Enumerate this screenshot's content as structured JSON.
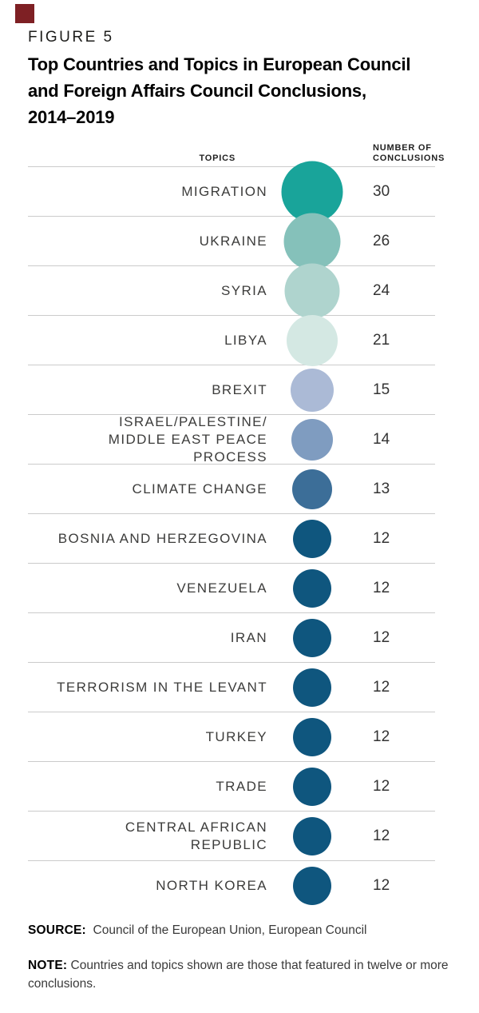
{
  "figure": {
    "kicker": "FIGURE 5",
    "title_lines": [
      "Top Countries and Topics in European Council",
      "and Foreign Affairs Council Conclusions,",
      "2014–2019"
    ],
    "marker_color": "#7E2024"
  },
  "chart_data": {
    "type": "table",
    "variant": "proportional-bubble-table",
    "title": "Top Countries and Topics in European Council and Foreign Affairs Council Conclusions, 2014–2019",
    "topics_header": "TOPICS",
    "count_header_lines": [
      "NUMBER OF",
      "CONCLUSIONS"
    ],
    "encoding": "circle size encodes number of conclusions",
    "divider_color": "#CBCBCB",
    "rows": [
      {
        "topic": "MIGRATION",
        "value": 30,
        "color": "#19A49A"
      },
      {
        "topic": "UKRAINE",
        "value": 26,
        "color": "#85C1BA"
      },
      {
        "topic": "SYRIA",
        "value": 24,
        "color": "#AFD4CE"
      },
      {
        "topic": "LIBYA",
        "value": 21,
        "color": "#D4E8E3"
      },
      {
        "topic": "BREXIT",
        "value": 15,
        "color": "#ABBAD6"
      },
      {
        "topic": "ISRAEL/PALESTINE/\nMIDDLE EAST PEACE PROCESS",
        "value": 14,
        "color": "#7F9CC0"
      },
      {
        "topic": "CLIMATE CHANGE",
        "value": 13,
        "color": "#3C6E98"
      },
      {
        "topic": "BOSNIA AND HERZEGOVINA",
        "value": 12,
        "color": "#0F567E"
      },
      {
        "topic": "VENEZUELA",
        "value": 12,
        "color": "#0F567E"
      },
      {
        "topic": "IRAN",
        "value": 12,
        "color": "#0F567E"
      },
      {
        "topic": "TERRORISM IN THE LEVANT",
        "value": 12,
        "color": "#0F567E"
      },
      {
        "topic": "TURKEY",
        "value": 12,
        "color": "#0F567E"
      },
      {
        "topic": "TRADE",
        "value": 12,
        "color": "#0F567E"
      },
      {
        "topic": "CENTRAL AFRICAN\nREPUBLIC",
        "value": 12,
        "color": "#0F567E"
      },
      {
        "topic": "NORTH KOREA",
        "value": 12,
        "color": "#0F567E"
      }
    ]
  },
  "footer": {
    "source_label": "SOURCE:",
    "source_text": "Council of the European Union, European Council",
    "note_label": "NOTE:",
    "note_text": "Countries and topics shown are those that featured in twelve or more conclusions."
  }
}
